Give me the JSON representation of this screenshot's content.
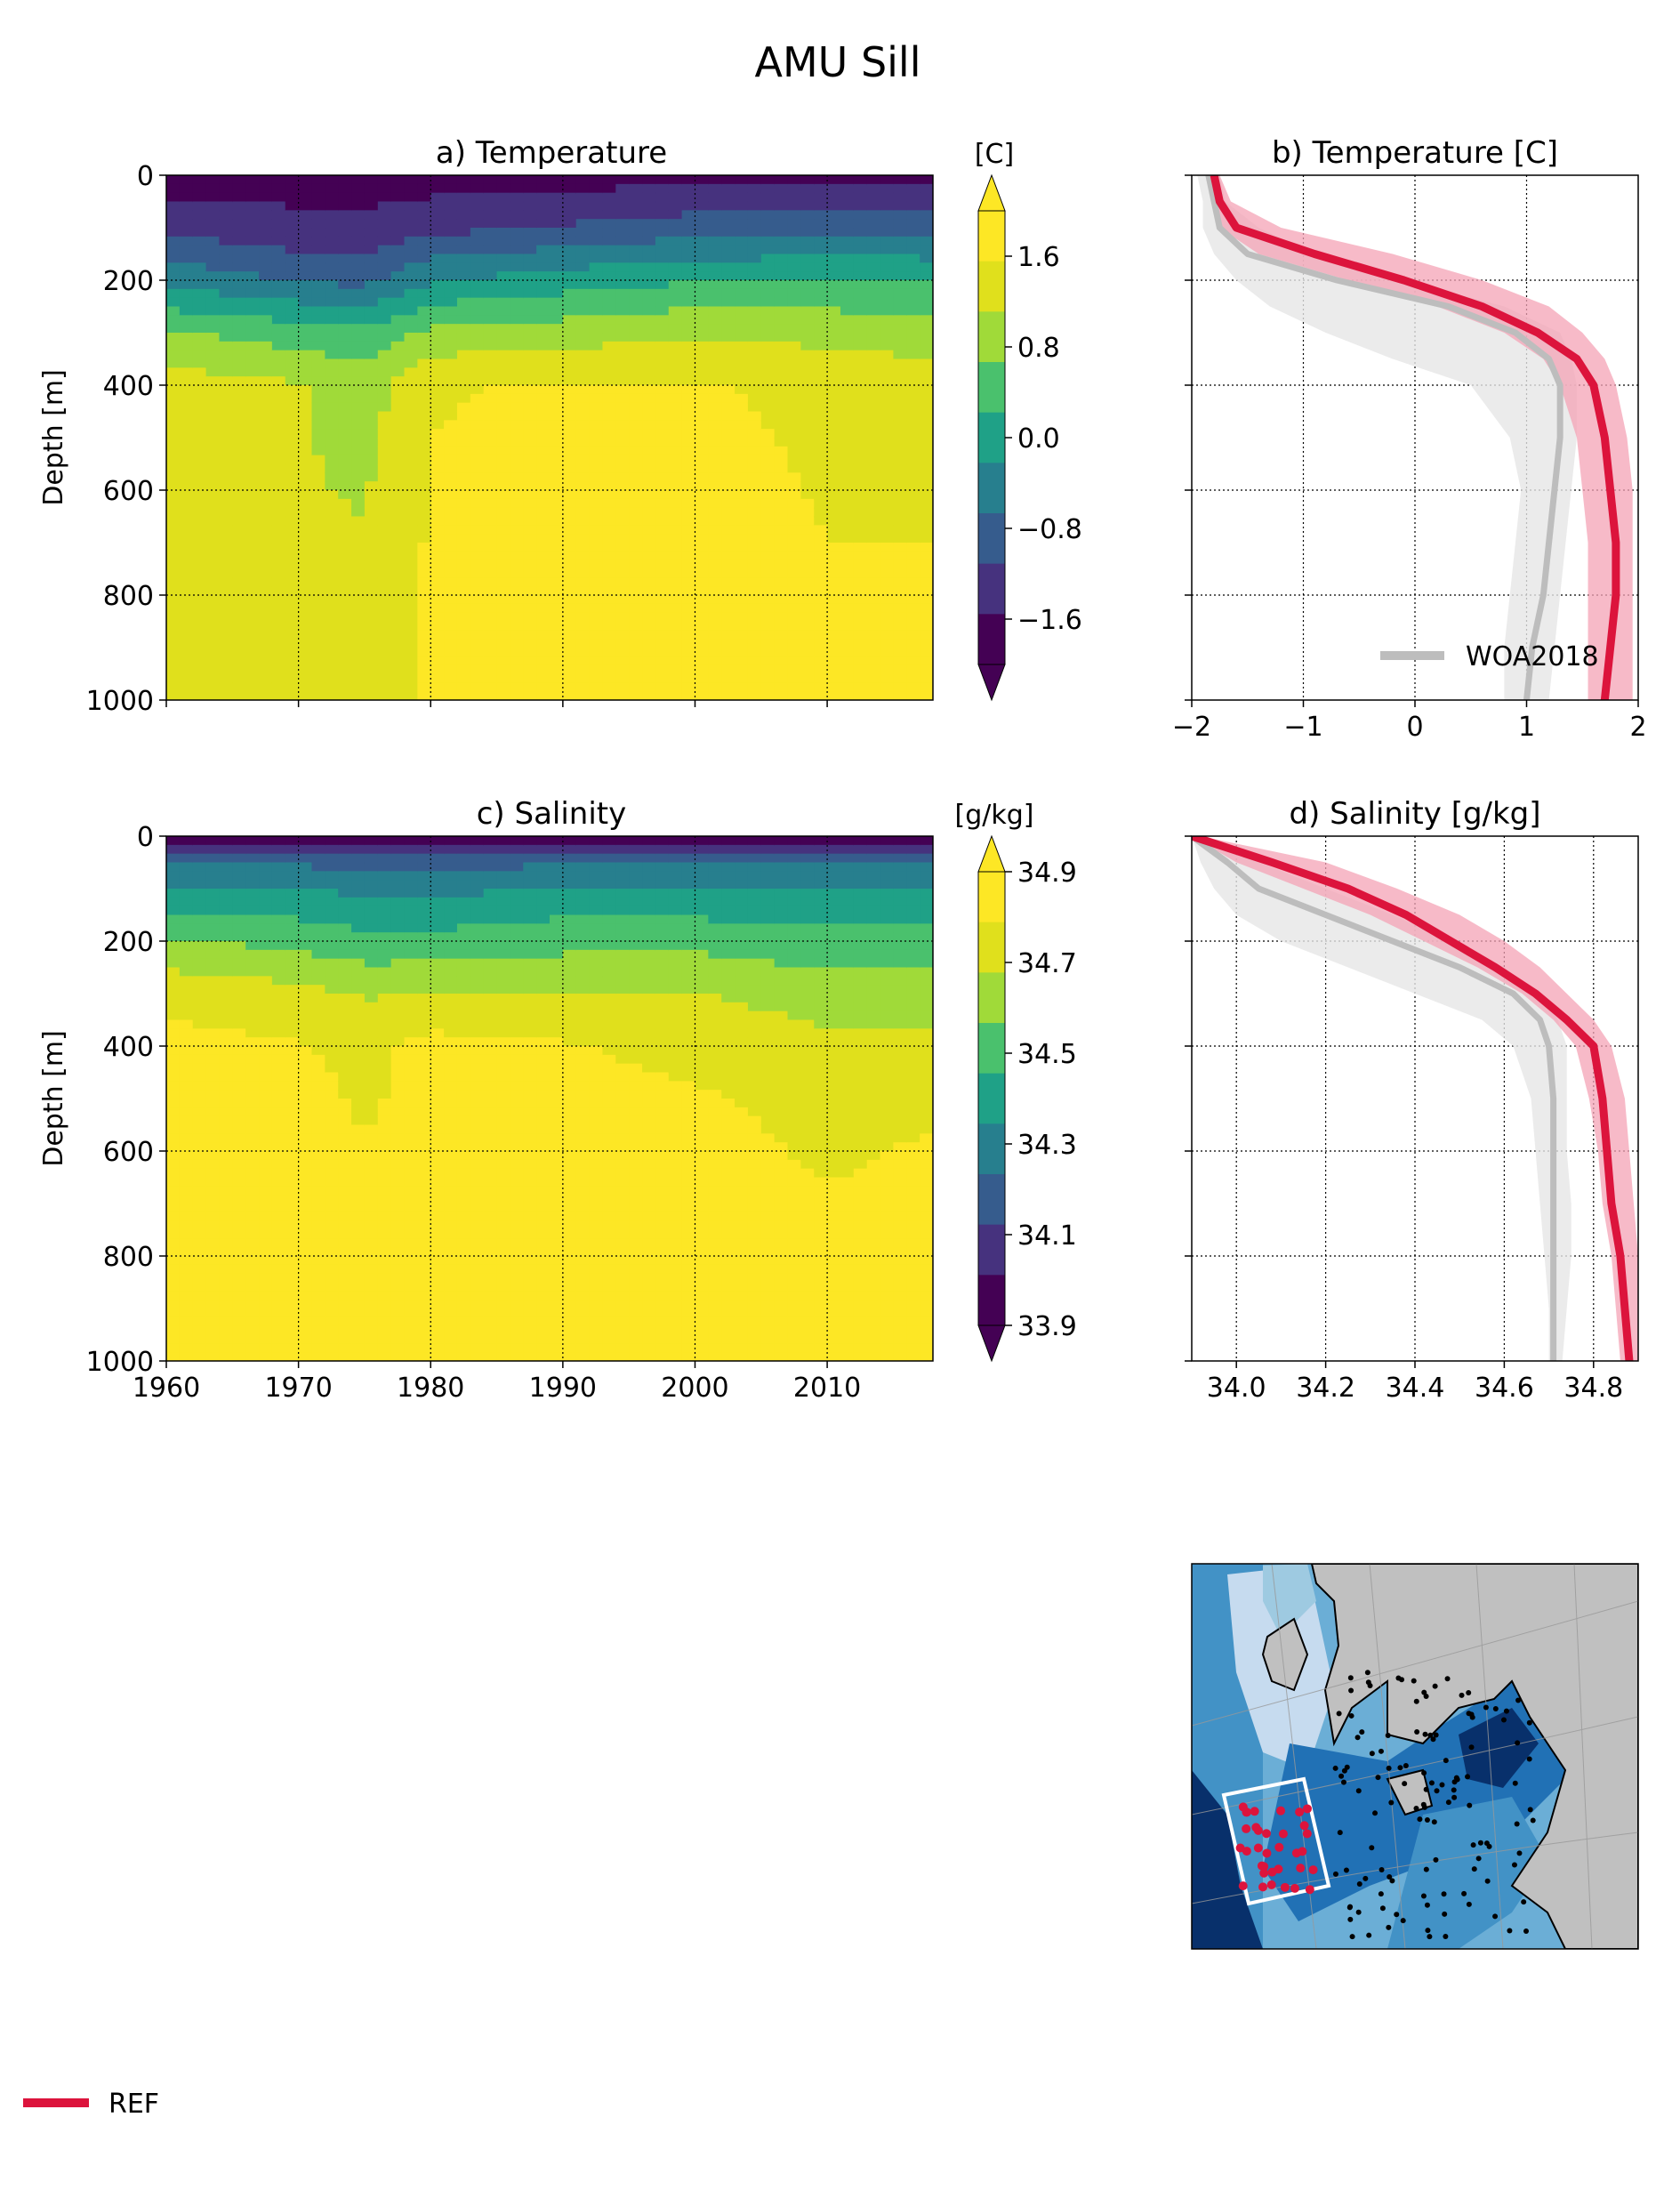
{
  "title": "AMU Sill",
  "colors": {
    "ref": "#dc143c",
    "ref_band": "#f4a3b6",
    "woa": "#bdbdbd",
    "woa_band": "#e6e6e6",
    "viridis": [
      "#440154",
      "#46327e",
      "#365c8d",
      "#277f8e",
      "#1fa187",
      "#4ac16d",
      "#a0da39",
      "#e0e01c",
      "#fde725"
    ],
    "map_ocean": [
      "#08306b",
      "#2171b5",
      "#4292c6",
      "#6baed6",
      "#9ecae1",
      "#c6dbef"
    ],
    "map_land": "#c0c0c0",
    "map_box": "#ffffff",
    "map_points": "#000000",
    "map_ref_points": "#dc143c"
  },
  "chart_data": [
    {
      "id": "a",
      "type": "heatmap",
      "title": "a) Temperature",
      "xlabel": "",
      "ylabel": "Depth [m]",
      "xlim": [
        1960,
        2018
      ],
      "ylim": [
        1000,
        0
      ],
      "yticks": [
        "0",
        "200",
        "400",
        "600",
        "800",
        "1000"
      ],
      "xticks": [
        "1960",
        "1970",
        "1980",
        "1990",
        "2000",
        "2010"
      ],
      "grid": true,
      "colorbar": {
        "label": "[C]",
        "ticks": [
          "1.6",
          "0.8",
          "0.0",
          "−0.8",
          "−1.6"
        ],
        "range": [
          -2.0,
          2.0
        ],
        "extend": "both"
      },
      "depth_levels": [
        0,
        100,
        200,
        300,
        400,
        600,
        800,
        1000
      ],
      "years": [
        1960,
        1970,
        1975,
        1980,
        1990,
        2000,
        2010,
        2018
      ],
      "values": [
        [
          -2.0,
          -2.0,
          -2.0,
          -2.0,
          -2.0,
          -1.9,
          -1.9,
          -1.9
        ],
        [
          -1.4,
          -1.6,
          -1.6,
          -1.4,
          -1.2,
          -1.0,
          -0.9,
          -0.9
        ],
        [
          -0.4,
          -0.8,
          -0.9,
          -0.3,
          0.0,
          0.2,
          0.3,
          0.2
        ],
        [
          0.8,
          0.5,
          0.4,
          0.9,
          1.0,
          1.2,
          1.1,
          1.0
        ],
        [
          1.5,
          1.3,
          1.0,
          1.7,
          1.8,
          1.8,
          1.6,
          1.5
        ],
        [
          1.5,
          1.3,
          1.2,
          1.8,
          2.0,
          2.0,
          1.7,
          1.7
        ],
        [
          1.5,
          1.4,
          1.4,
          1.8,
          2.0,
          2.0,
          1.8,
          1.8
        ],
        [
          1.4,
          1.4,
          1.5,
          1.8,
          1.8,
          1.8,
          1.8,
          1.8
        ]
      ]
    },
    {
      "id": "b",
      "type": "line",
      "title": "b) Temperature [C]",
      "xlim": [
        -2,
        2
      ],
      "ylim": [
        1000,
        0
      ],
      "xticks": [
        "−2",
        "−1",
        "0",
        "1",
        "2"
      ],
      "grid": true,
      "legend": {
        "entries": [
          "WOA2018"
        ],
        "placement": "lower-right"
      },
      "y": [
        0,
        50,
        100,
        150,
        200,
        250,
        300,
        350,
        400,
        500,
        600,
        700,
        800,
        900,
        1000
      ],
      "series": [
        {
          "name": "REF",
          "x": [
            -1.8,
            -1.75,
            -1.6,
            -0.9,
            -0.1,
            0.6,
            1.1,
            1.45,
            1.6,
            1.7,
            1.75,
            1.8,
            1.8,
            1.75,
            1.7
          ],
          "low": [
            -1.85,
            -1.8,
            -1.75,
            -1.4,
            -0.6,
            0.2,
            0.8,
            1.15,
            1.3,
            1.45,
            1.5,
            1.55,
            1.55,
            1.55,
            1.55
          ],
          "high": [
            -1.75,
            -1.65,
            -1.2,
            -0.2,
            0.6,
            1.2,
            1.5,
            1.7,
            1.8,
            1.9,
            1.95,
            1.95,
            1.95,
            1.95,
            1.95
          ]
        },
        {
          "name": "WOA2018",
          "x": [
            -1.85,
            -1.8,
            -1.75,
            -1.5,
            -0.7,
            0.3,
            0.9,
            1.2,
            1.3,
            1.3,
            1.25,
            1.2,
            1.15,
            1.05,
            1.0
          ],
          "low": [
            -1.95,
            -1.9,
            -1.9,
            -1.8,
            -1.6,
            -1.3,
            -0.8,
            -0.2,
            0.5,
            0.85,
            0.95,
            0.9,
            0.85,
            0.8,
            0.8
          ],
          "high": [
            -1.75,
            -1.7,
            -1.4,
            -0.9,
            -0.1,
            0.8,
            1.3,
            1.4,
            1.45,
            1.45,
            1.4,
            1.35,
            1.3,
            1.25,
            1.2
          ]
        }
      ]
    },
    {
      "id": "c",
      "type": "heatmap",
      "title": "c) Salinity",
      "xlabel": "",
      "ylabel": "Depth [m]",
      "xlim": [
        1960,
        2018
      ],
      "ylim": [
        1000,
        0
      ],
      "yticks": [
        "0",
        "200",
        "400",
        "600",
        "800",
        "1000"
      ],
      "xticks": [
        "1960",
        "1970",
        "1980",
        "1990",
        "2000",
        "2010"
      ],
      "grid": true,
      "colorbar": {
        "label": "[g/kg]",
        "ticks": [
          "34.9",
          "34.7",
          "34.5",
          "34.3",
          "34.1",
          "33.9"
        ],
        "range": [
          33.9,
          34.9
        ],
        "extend": "both"
      },
      "depth_levels": [
        0,
        50,
        100,
        200,
        300,
        400,
        500,
        600,
        800,
        1000
      ],
      "years": [
        1960,
        1970,
        1975,
        1980,
        1990,
        2000,
        2010,
        2018
      ],
      "values": [
        [
          33.9,
          33.9,
          33.9,
          33.9,
          33.9,
          33.9,
          33.9,
          33.9
        ],
        [
          34.2,
          34.2,
          34.15,
          34.15,
          34.2,
          34.2,
          34.2,
          34.2
        ],
        [
          34.35,
          34.35,
          34.3,
          34.3,
          34.35,
          34.35,
          34.35,
          34.35
        ],
        [
          34.6,
          34.55,
          34.5,
          34.5,
          34.55,
          34.55,
          34.5,
          34.5
        ],
        [
          34.8,
          34.75,
          34.7,
          34.72,
          34.7,
          34.72,
          34.65,
          34.65
        ],
        [
          34.88,
          34.85,
          34.8,
          34.88,
          34.85,
          34.8,
          34.75,
          34.75
        ],
        [
          34.88,
          34.88,
          34.82,
          34.88,
          34.88,
          34.85,
          34.8,
          34.82
        ],
        [
          34.88,
          34.88,
          34.85,
          34.88,
          34.88,
          34.88,
          34.82,
          34.85
        ],
        [
          34.88,
          34.88,
          34.88,
          34.88,
          34.88,
          34.88,
          34.88,
          34.88
        ],
        [
          34.88,
          34.88,
          34.88,
          34.88,
          34.88,
          34.88,
          34.88,
          34.88
        ]
      ]
    },
    {
      "id": "d",
      "type": "line",
      "title": "d) Salinity [g/kg]",
      "xlim": [
        33.9,
        34.9
      ],
      "ylim": [
        1000,
        0
      ],
      "xticks": [
        "34.0",
        "34.2",
        "34.4",
        "34.6",
        "34.8"
      ],
      "grid": true,
      "y": [
        0,
        50,
        100,
        150,
        200,
        250,
        300,
        350,
        400,
        500,
        600,
        700,
        800,
        900,
        1000
      ],
      "series": [
        {
          "name": "REF",
          "x": [
            33.9,
            34.08,
            34.25,
            34.38,
            34.48,
            34.58,
            34.67,
            34.74,
            34.8,
            34.82,
            34.83,
            34.84,
            34.86,
            34.87,
            34.88
          ],
          "low": [
            33.9,
            34.0,
            34.15,
            34.3,
            34.42,
            34.54,
            34.64,
            34.71,
            34.76,
            34.79,
            34.81,
            34.82,
            34.84,
            34.85,
            34.86
          ],
          "high": [
            33.92,
            34.2,
            34.36,
            34.5,
            34.6,
            34.68,
            34.74,
            34.8,
            34.84,
            34.87,
            34.88,
            34.89,
            34.9,
            34.9,
            34.9
          ]
        },
        {
          "name": "WOA2018",
          "x": [
            33.9,
            33.98,
            34.05,
            34.2,
            34.35,
            34.5,
            34.62,
            34.68,
            34.7,
            34.71,
            34.71,
            34.71,
            34.71,
            34.71,
            34.71
          ],
          "low": [
            33.9,
            33.92,
            33.95,
            34.0,
            34.1,
            34.25,
            34.4,
            34.55,
            34.62,
            34.66,
            34.67,
            34.68,
            34.69,
            34.7,
            34.7
          ],
          "high": [
            33.9,
            34.05,
            34.2,
            34.35,
            34.48,
            34.6,
            34.68,
            34.72,
            34.74,
            34.74,
            34.74,
            34.75,
            34.75,
            34.74,
            34.73
          ]
        }
      ]
    }
  ],
  "map": {
    "ref_points": 34,
    "other_points": 120
  },
  "legend": {
    "label": "REF"
  }
}
